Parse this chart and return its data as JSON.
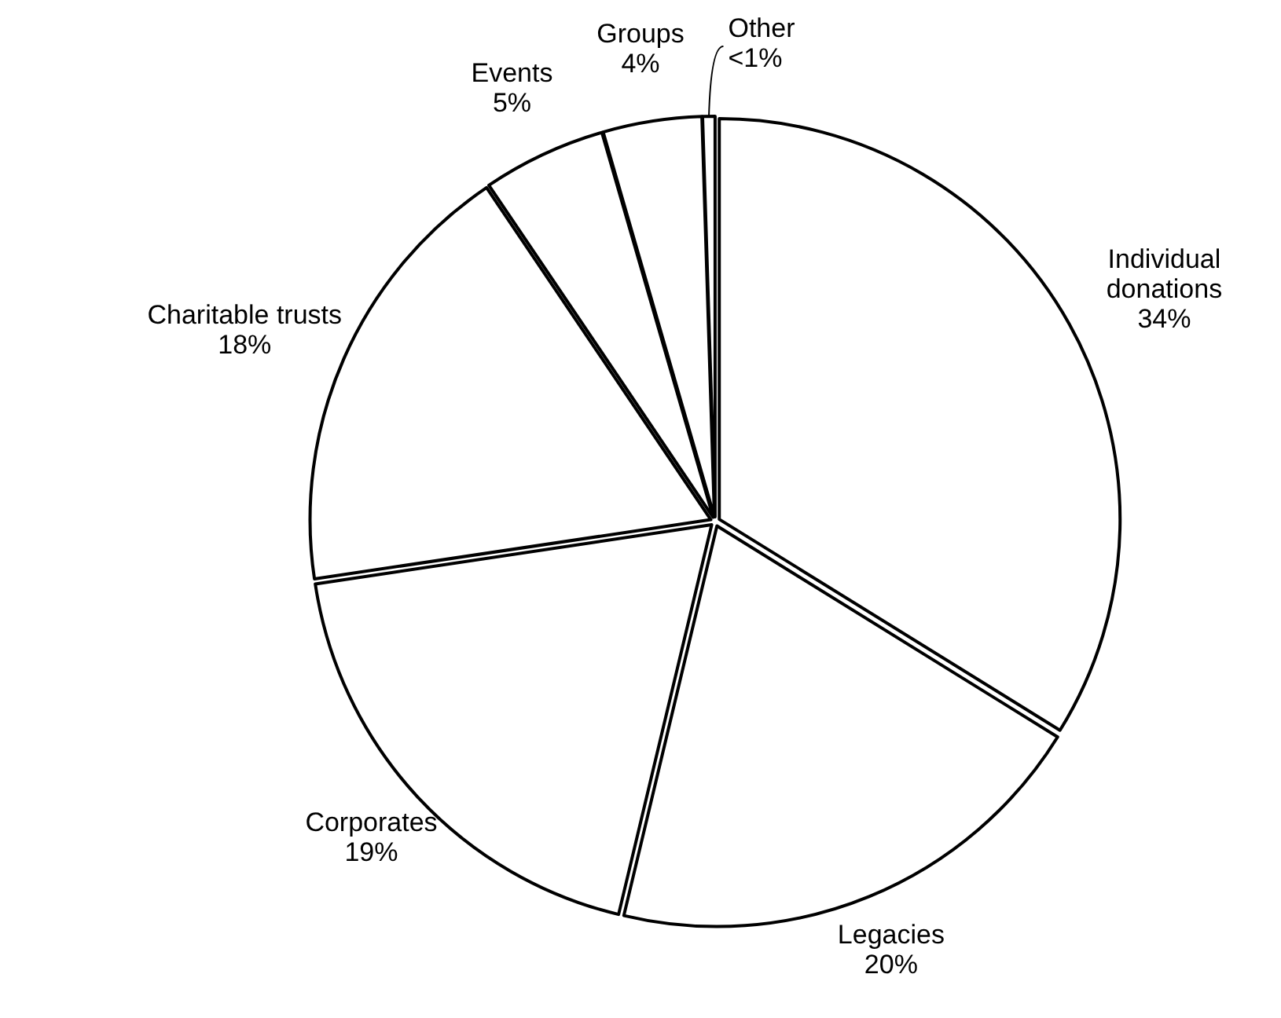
{
  "chart_data": {
    "type": "pie",
    "categories": [
      "Individual donations",
      "Legacies",
      "Corporates",
      "Charitable trusts",
      "Events",
      "Groups",
      "Other"
    ],
    "values": [
      34,
      20,
      19,
      18,
      5,
      4,
      0.5
    ],
    "value_labels": [
      "34%",
      "20%",
      "19%",
      "18%",
      "5%",
      "4%",
      "<1%"
    ],
    "colors": [
      "#ffffff",
      "#ffffff",
      "#ffffff",
      "#ffffff",
      "#ffffff",
      "#ffffff",
      "#ffffff"
    ]
  }
}
